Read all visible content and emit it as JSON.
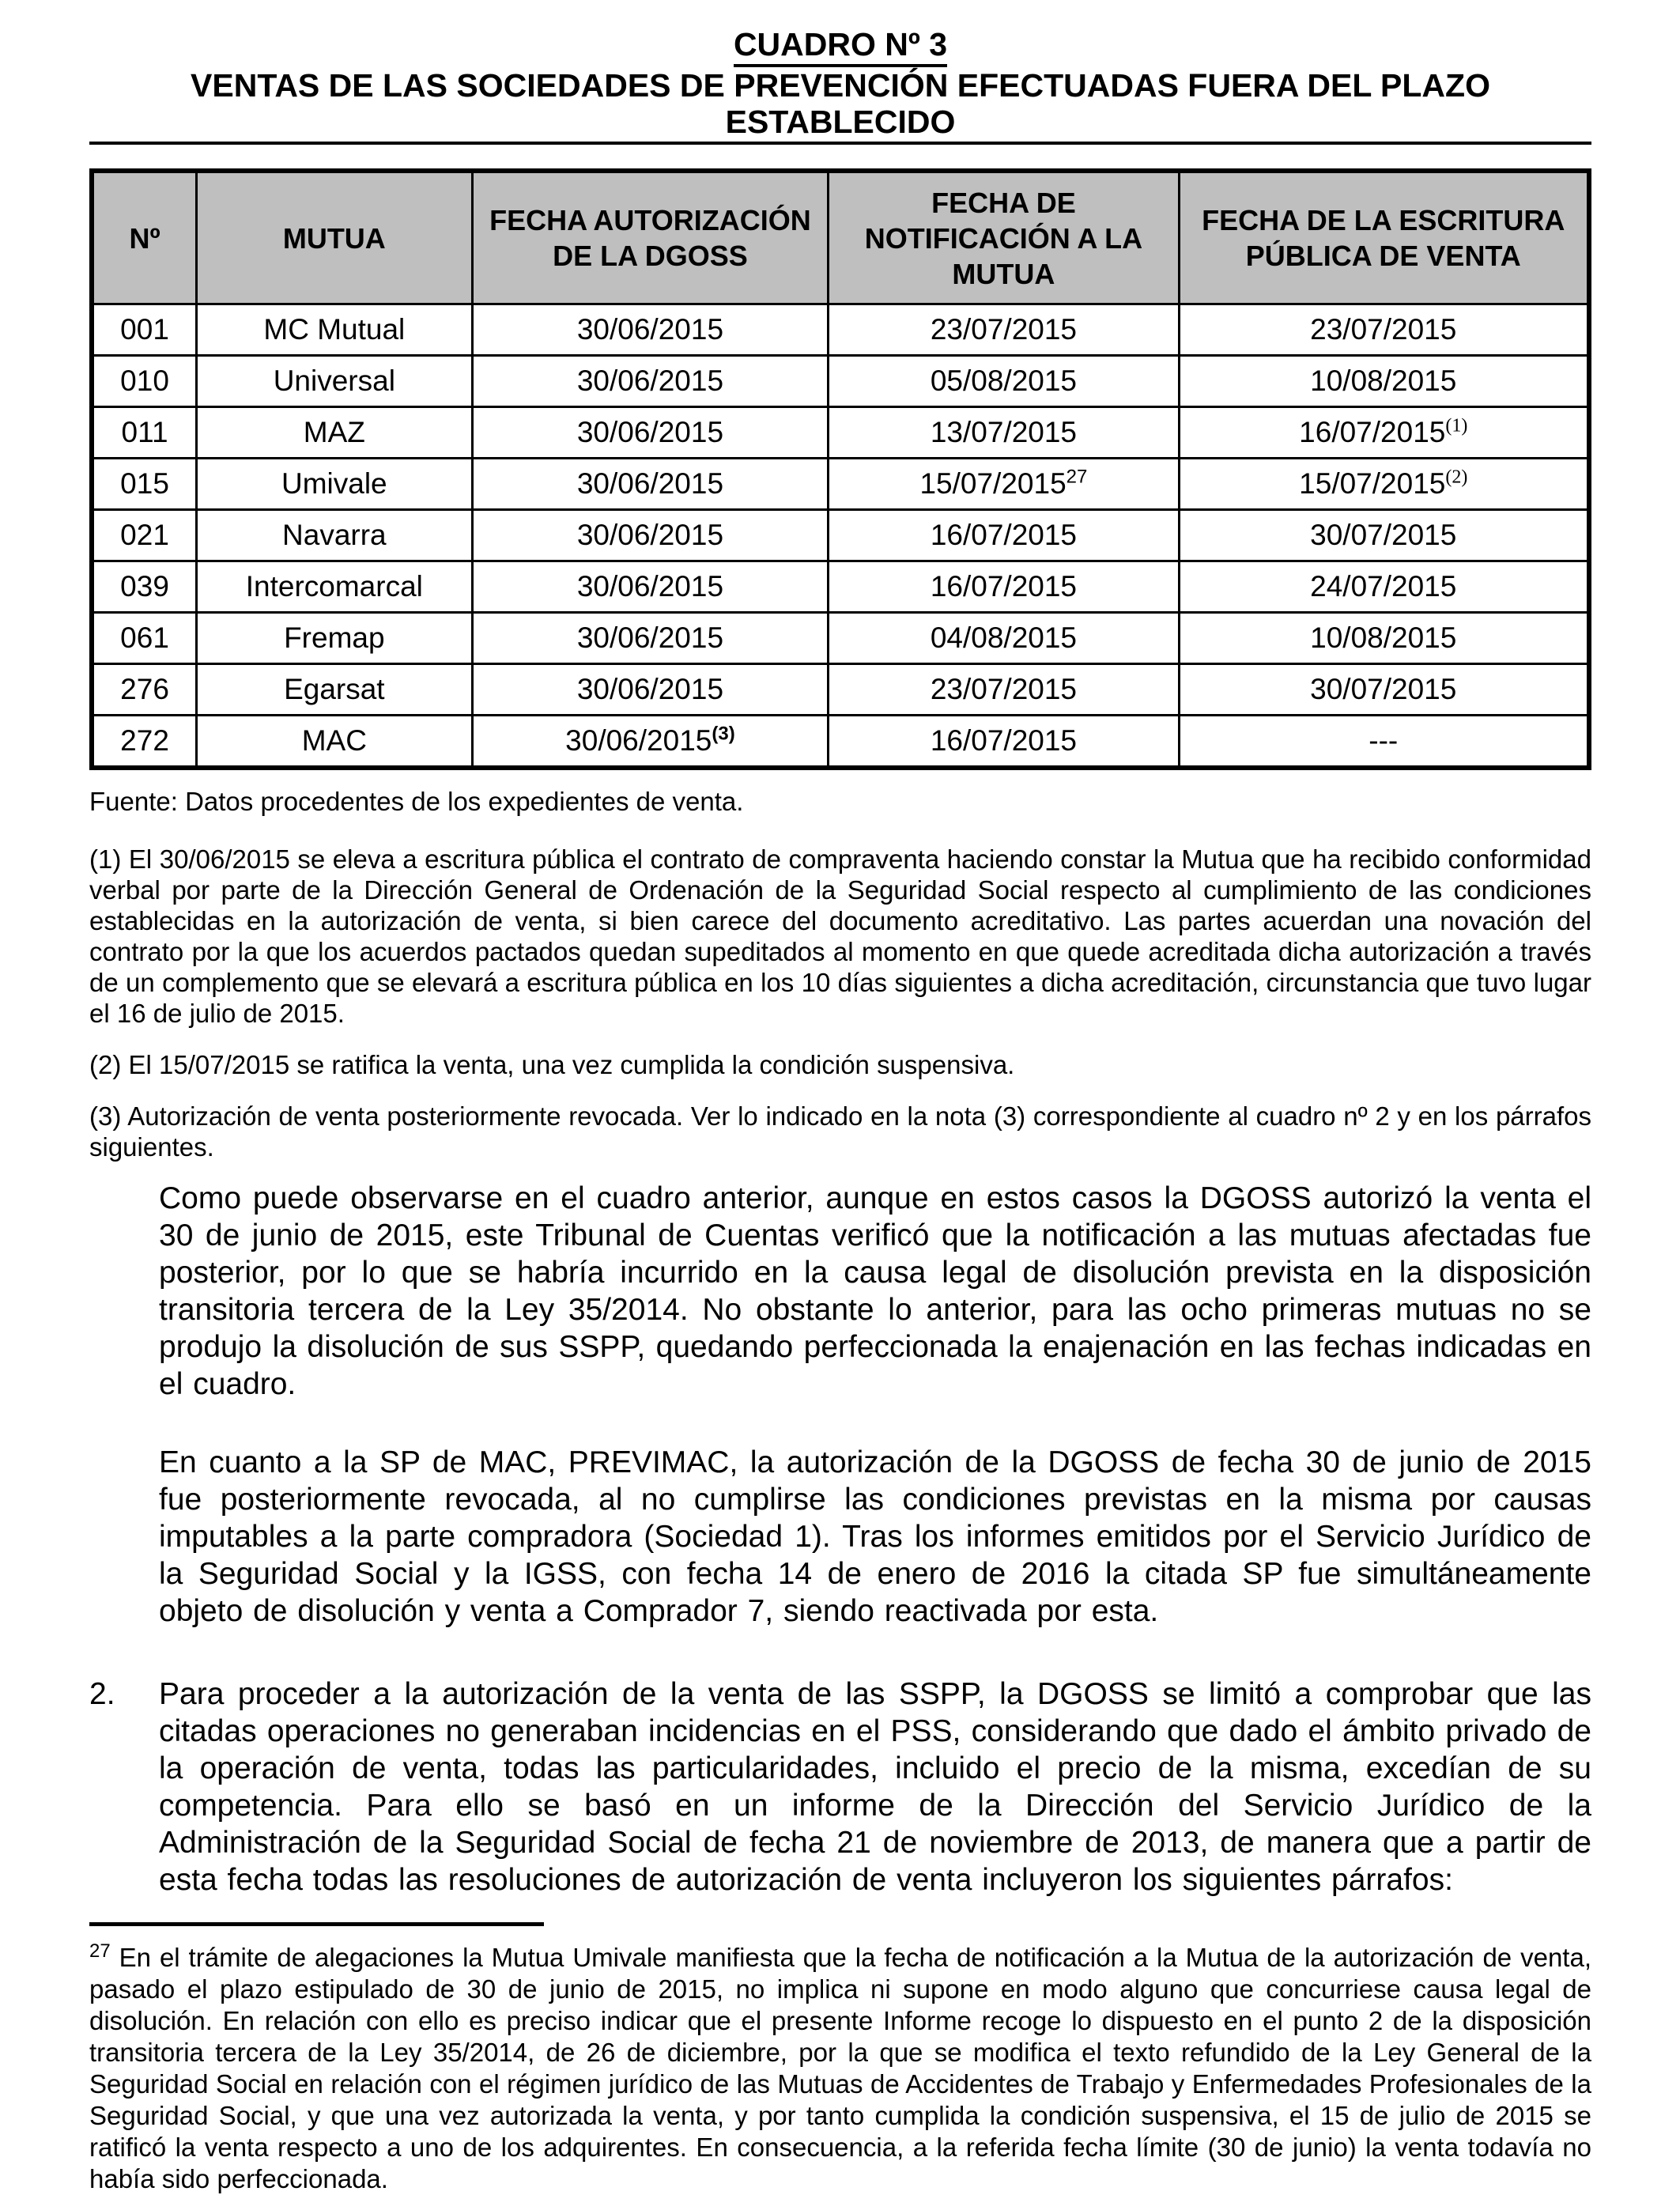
{
  "page": {
    "title_line1": "CUADRO Nº 3",
    "title_line2": "VENTAS DE LAS SOCIEDADES DE PREVENCIÓN EFECTUADAS FUERA DEL PLAZO ESTABLECIDO"
  },
  "table": {
    "headers": [
      "Nº",
      "MUTUA",
      "FECHA AUTORIZACIÓN DE LA DGOSS",
      "FECHA DE NOTIFICACIÓN A LA MUTUA",
      "FECHA DE LA ESCRITURA PÚBLICA DE VENTA"
    ],
    "rows": [
      {
        "cells": [
          {
            "text": "001"
          },
          {
            "text": "MC Mutual"
          },
          {
            "text": "30/06/2015"
          },
          {
            "text": "23/07/2015"
          },
          {
            "text": "23/07/2015"
          }
        ]
      },
      {
        "cells": [
          {
            "text": "010"
          },
          {
            "text": "Universal"
          },
          {
            "text": "30/06/2015"
          },
          {
            "text": "05/08/2015"
          },
          {
            "text": "10/08/2015"
          }
        ]
      },
      {
        "cells": [
          {
            "text": "011"
          },
          {
            "text": "MAZ"
          },
          {
            "text": "30/06/2015"
          },
          {
            "text": "13/07/2015"
          },
          {
            "text": "16/07/2015",
            "sup": "(1)",
            "sup_style": "serif"
          }
        ]
      },
      {
        "cells": [
          {
            "text": "015"
          },
          {
            "text": "Umivale"
          },
          {
            "text": "30/06/2015"
          },
          {
            "text": "15/07/2015",
            "sup": "27",
            "sup_style": "sans"
          },
          {
            "text": "15/07/2015",
            "sup": "(2)",
            "sup_style": "serif"
          }
        ]
      },
      {
        "cells": [
          {
            "text": "021"
          },
          {
            "text": "Navarra"
          },
          {
            "text": "30/06/2015"
          },
          {
            "text": "16/07/2015"
          },
          {
            "text": "30/07/2015"
          }
        ]
      },
      {
        "cells": [
          {
            "text": "039"
          },
          {
            "text": "Intercomarcal"
          },
          {
            "text": "30/06/2015"
          },
          {
            "text": "16/07/2015"
          },
          {
            "text": "24/07/2015"
          }
        ]
      },
      {
        "cells": [
          {
            "text": "061"
          },
          {
            "text": "Fremap"
          },
          {
            "text": "30/06/2015"
          },
          {
            "text": "04/08/2015"
          },
          {
            "text": "10/08/2015"
          }
        ]
      },
      {
        "cells": [
          {
            "text": "276"
          },
          {
            "text": "Egarsat"
          },
          {
            "text": "30/06/2015"
          },
          {
            "text": "23/07/2015"
          },
          {
            "text": "30/07/2015"
          }
        ]
      },
      {
        "cells": [
          {
            "text": "272"
          },
          {
            "text": "MAC"
          },
          {
            "text": "30/06/2015",
            "sup": "(3)",
            "sup_style": "bold"
          },
          {
            "text": "16/07/2015"
          },
          {
            "text": "---"
          }
        ]
      }
    ]
  },
  "source_line": "Fuente: Datos procedentes de los expedientes de venta.",
  "notes": [
    "(1)  El 30/06/2015 se eleva a escritura pública el contrato de compraventa haciendo constar la Mutua que ha recibido conformidad verbal por parte de la Dirección General de Ordenación de la Seguridad Social respecto al cumplimiento de las condiciones establecidas en la autorización de venta, si bien carece del documento acreditativo. Las partes acuerdan una novación del contrato por la que los acuerdos pactados quedan supeditados al momento en que quede acreditada dicha autorización a través de un complemento que se elevará a escritura pública en los 10 días siguientes a dicha acreditación, circunstancia que tuvo lugar el 16 de julio de 2015.",
    "(2) El 15/07/2015 se ratifica la venta, una vez cumplida la condición suspensiva.",
    "(3) Autorización de venta posteriormente revocada. Ver lo indicado en la nota (3) correspondiente al cuadro nº 2 y en los párrafos siguientes."
  ],
  "paragraphs": [
    "Como puede observarse en el cuadro anterior, aunque en estos casos la DGOSS autorizó la venta el 30 de junio de 2015, este Tribunal de Cuentas verificó que la notificación a las mutuas afectadas fue posterior, por lo que se habría incurrido en la causa legal de disolución prevista en la disposición transitoria tercera de la Ley 35/2014. No obstante lo anterior, para las ocho primeras mutuas no se produjo la disolución de sus SSPP, quedando perfeccionada la enajenación en las fechas indicadas en el cuadro.",
    "En cuanto a la SP de MAC, PREVIMAC, la autorización de la DGOSS de fecha 30 de junio de 2015 fue posteriormente revocada, al no cumplirse las condiciones previstas en la misma por causas imputables a la parte compradora (Sociedad 1). Tras los informes emitidos por el Servicio Jurídico de la Seguridad Social y la IGSS, con fecha 14 de enero de 2016 la citada SP fue simultáneamente objeto de disolución y venta a Comprador 7, siendo reactivada por esta."
  ],
  "numbered_item": {
    "marker": "2.",
    "text": "Para proceder a la autorización de la venta de las SSPP, la DGOSS se limitó a comprobar que las citadas operaciones no generaban incidencias en el PSS, considerando que dado el ámbito privado de la operación de venta, todas las particularidades, incluido el precio de la misma, excedían de su competencia. Para ello se basó en un informe de la Dirección del Servicio Jurídico de la Administración de la Seguridad Social de fecha 21 de noviembre de 2013, de manera que a partir de esta fecha todas las resoluciones de autorización de venta incluyeron los siguientes párrafos:"
  },
  "footnote": {
    "number": "27",
    "text": "En el trámite de alegaciones la Mutua Umivale manifiesta que la fecha de notificación a la Mutua de la autorización de venta, pasado el plazo estipulado de 30 de junio de 2015, no implica ni supone en modo alguno que concurriese causa legal de disolución. En relación con ello es preciso indicar que el presente Informe recoge lo dispuesto en el punto 2 de la disposición transitoria tercera de la Ley 35/2014, de 26 de diciembre, por la que se modifica el texto refundido de la Ley General de la Seguridad Social en relación con el régimen jurídico de las Mutuas de Accidentes de Trabajo y Enfermedades Profesionales de la Seguridad Social, y que una vez autorizada la venta, y por tanto cumplida la condición suspensiva, el 15 de julio de 2015 se ratificó la venta respecto a uno de los adquirentes. En consecuencia, a la referida fecha límite (30 de junio) la venta todavía no había sido perfeccionada."
  },
  "colors": {
    "header_bg": "#bfbfbf",
    "text": "#000000",
    "page_bg": "#ffffff"
  }
}
